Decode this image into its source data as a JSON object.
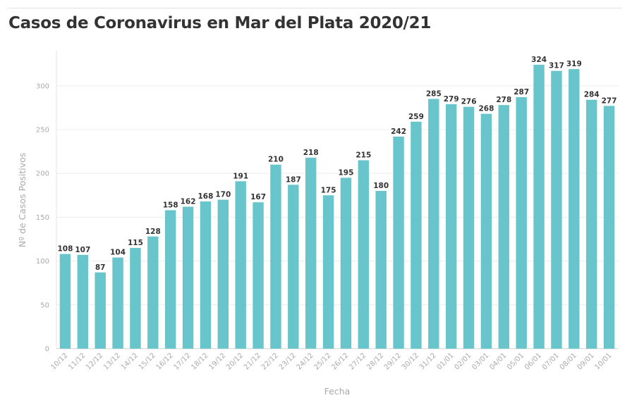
{
  "chart_data": {
    "type": "bar",
    "title": "Casos de Coronavirus en Mar del Plata 2020/21",
    "xlabel": "Fecha",
    "ylabel": "Nº de Casos Positivos",
    "ylim": [
      0,
      340
    ],
    "yticks": [
      0,
      50,
      100,
      150,
      200,
      250,
      300
    ],
    "grid": true,
    "bar_color": "#67c5cb",
    "categories": [
      "10/12",
      "11/12",
      "12/12",
      "13/12",
      "14/12",
      "15/12",
      "16/12",
      "17/12",
      "18/12",
      "19/12",
      "20/12",
      "21/12",
      "22/12",
      "23/12",
      "24/12",
      "25/12",
      "26/12",
      "27/12",
      "28/12",
      "29/12",
      "30/12",
      "31/12",
      "01/01",
      "02/01",
      "03/01",
      "04/01",
      "05/01",
      "06/01",
      "07/01",
      "08/01",
      "09/01",
      "10/01"
    ],
    "values": [
      108,
      107,
      87,
      104,
      115,
      128,
      158,
      162,
      168,
      170,
      191,
      167,
      210,
      187,
      218,
      175,
      195,
      215,
      180,
      242,
      259,
      285,
      279,
      276,
      268,
      278,
      287,
      324,
      317,
      319,
      284,
      277
    ]
  }
}
